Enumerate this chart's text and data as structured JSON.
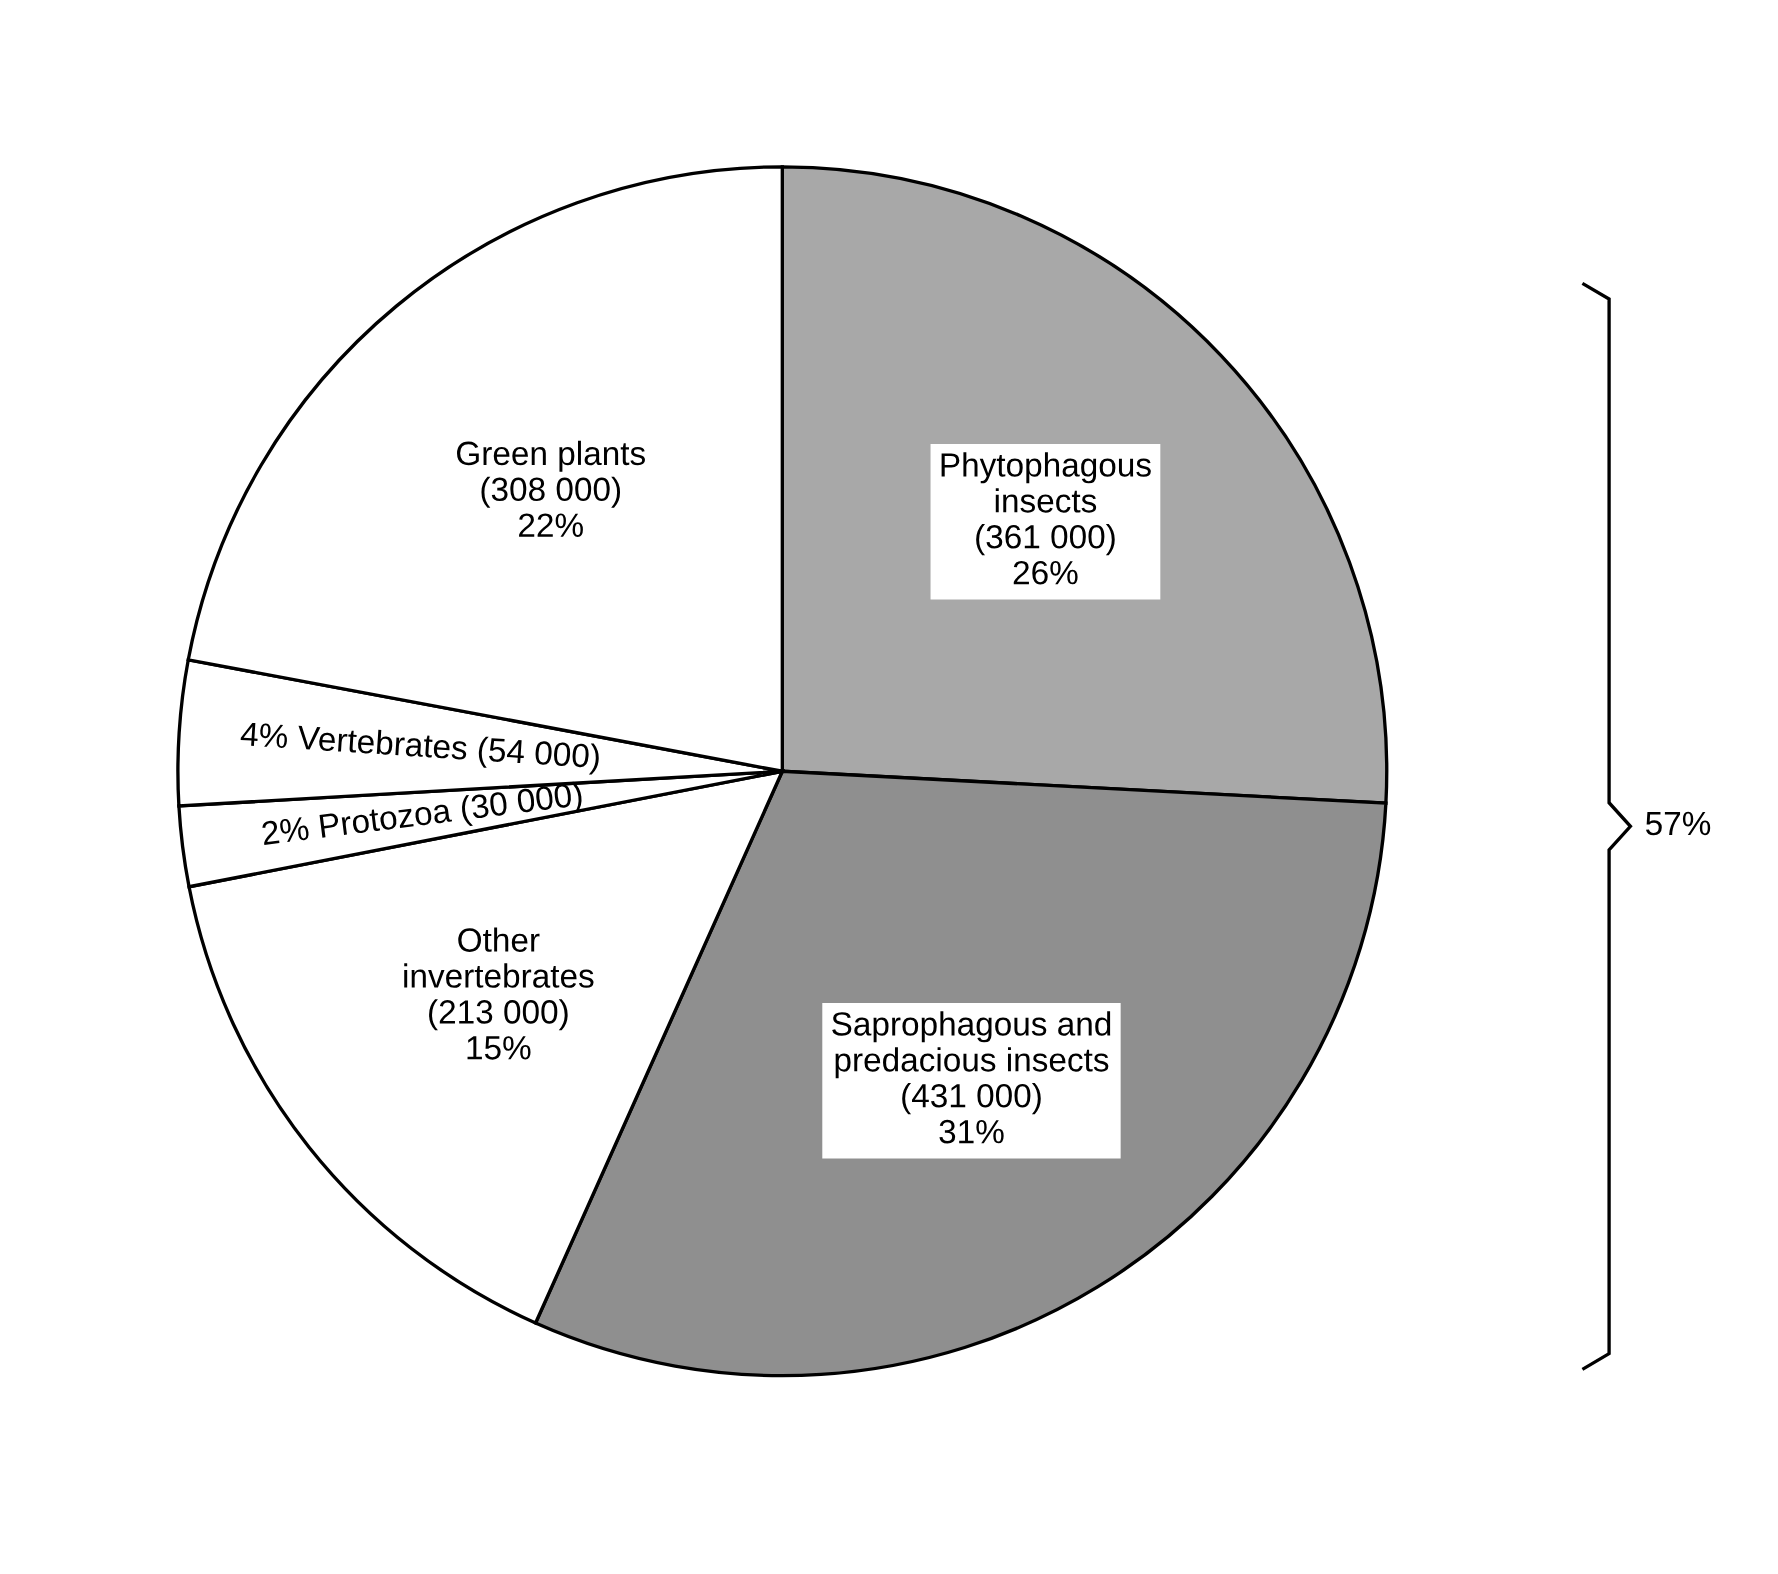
{
  "chart_data": {
    "type": "pie",
    "categories": [
      "Phytophagous\ninsects\n(361 000)\n26%",
      "Saprophagous and\npredacious insects\n(431 000)\n31%",
      "Other\ninvertebrates\n(213 000)\n15%",
      "2% Protozoa (30 000)",
      "4% Vertebrates (54 000)",
      "Green plants\n(308 000)\n22%"
    ],
    "values": [
      361000,
      431000,
      213000,
      30000,
      54000,
      308000
    ],
    "colors": [
      "#a8a8a8",
      "#8f8f8f",
      "#ffffff",
      "#ffffff",
      "#ffffff",
      "#ffffff"
    ],
    "annotations": [
      "57%"
    ]
  }
}
